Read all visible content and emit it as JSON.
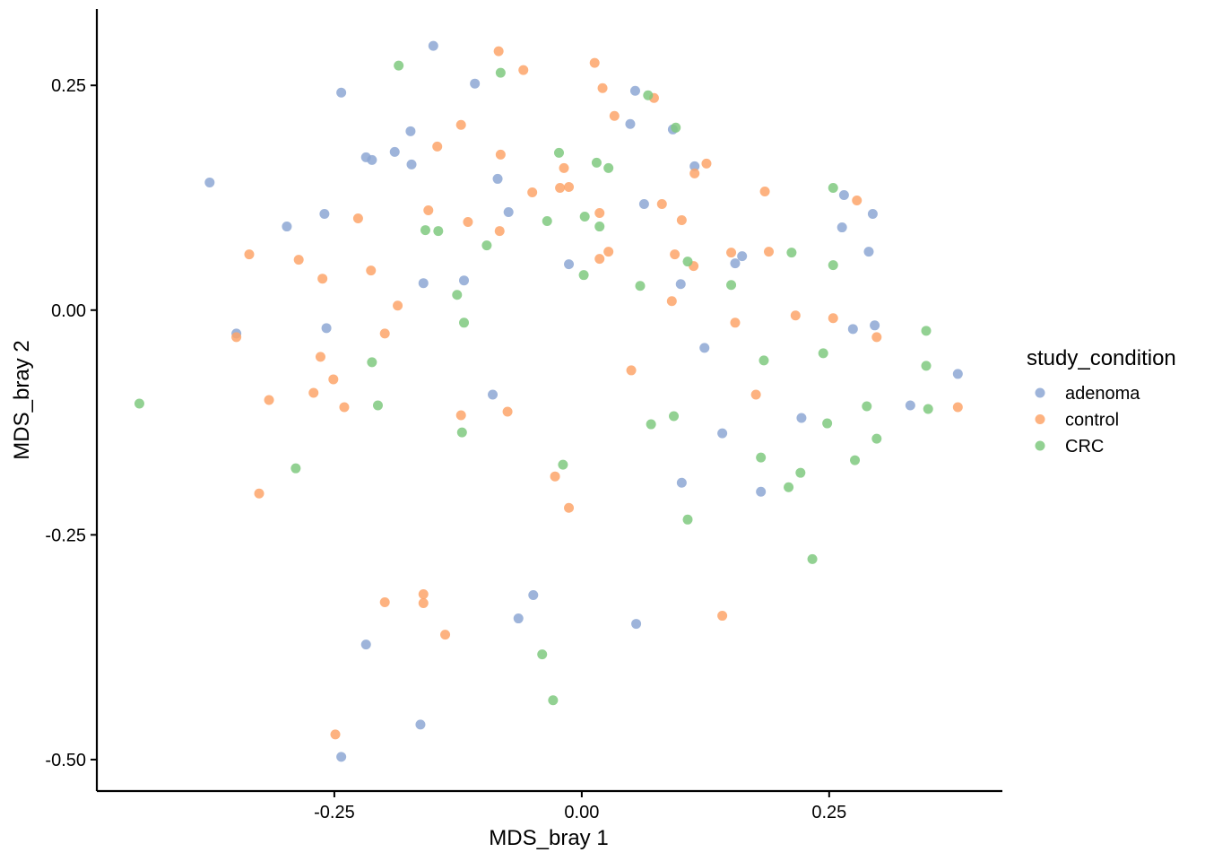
{
  "chart_data": {
    "type": "scatter",
    "xlabel": "MDS_bray 1",
    "ylabel": "MDS_bray 2",
    "xlim": [
      -0.49,
      0.425
    ],
    "ylim": [
      -0.535,
      0.335
    ],
    "x_ticks": [
      -0.25,
      0.0,
      0.25
    ],
    "x_tick_labels": [
      "-0.25",
      "0.00",
      "0.25"
    ],
    "y_ticks": [
      -0.5,
      -0.25,
      0.0,
      0.25
    ],
    "y_tick_labels": [
      "-0.50",
      "-0.25",
      "0.00",
      "0.25"
    ],
    "grid": false,
    "legend": {
      "title": "study_condition",
      "position": "right"
    },
    "series": [
      {
        "name": "adenoma",
        "color": "#8DA7D3",
        "points": [
          [
            -0.376,
            0.142
          ],
          [
            -0.349,
            -0.026
          ],
          [
            -0.298,
            0.093
          ],
          [
            -0.26,
            0.107
          ],
          [
            -0.258,
            -0.02
          ],
          [
            -0.243,
            0.242
          ],
          [
            -0.218,
            0.17
          ],
          [
            -0.212,
            0.167
          ],
          [
            -0.189,
            0.176
          ],
          [
            -0.173,
            0.199
          ],
          [
            -0.172,
            0.162
          ],
          [
            -0.16,
            0.03
          ],
          [
            -0.15,
            0.294
          ],
          [
            -0.119,
            0.033
          ],
          [
            -0.108,
            0.252
          ],
          [
            -0.085,
            0.146
          ],
          [
            -0.074,
            0.109
          ],
          [
            -0.013,
            0.051
          ],
          [
            0.049,
            0.207
          ],
          [
            0.054,
            0.244
          ],
          [
            0.063,
            0.118
          ],
          [
            0.092,
            0.201
          ],
          [
            0.1,
            0.029
          ],
          [
            0.114,
            0.16
          ],
          [
            0.124,
            -0.042
          ],
          [
            0.155,
            0.052
          ],
          [
            0.162,
            0.06
          ],
          [
            0.263,
            0.092
          ],
          [
            0.265,
            0.128
          ],
          [
            0.274,
            -0.021
          ],
          [
            0.29,
            0.065
          ],
          [
            0.294,
            0.107
          ],
          [
            0.296,
            -0.017
          ],
          [
            0.332,
            -0.106
          ],
          [
            0.38,
            -0.071
          ],
          [
            -0.09,
            -0.094
          ],
          [
            0.142,
            -0.137
          ],
          [
            0.222,
            -0.12
          ],
          [
            0.101,
            -0.192
          ],
          [
            0.181,
            -0.202
          ],
          [
            -0.218,
            -0.372
          ],
          [
            -0.049,
            -0.317
          ],
          [
            -0.064,
            -0.343
          ],
          [
            0.055,
            -0.349
          ],
          [
            -0.163,
            -0.461
          ],
          [
            -0.243,
            -0.497
          ]
        ]
      },
      {
        "name": "control",
        "color": "#FDA56A",
        "points": [
          [
            -0.336,
            0.062
          ],
          [
            -0.349,
            -0.03
          ],
          [
            -0.286,
            0.056
          ],
          [
            -0.262,
            0.035
          ],
          [
            -0.226,
            0.102
          ],
          [
            -0.213,
            0.044
          ],
          [
            -0.186,
            0.005
          ],
          [
            -0.199,
            -0.026
          ],
          [
            -0.264,
            -0.052
          ],
          [
            -0.251,
            -0.077
          ],
          [
            -0.271,
            -0.092
          ],
          [
            -0.316,
            -0.1
          ],
          [
            -0.24,
            -0.108
          ],
          [
            -0.326,
            -0.204
          ],
          [
            -0.155,
            0.111
          ],
          [
            -0.146,
            0.182
          ],
          [
            -0.122,
            0.206
          ],
          [
            -0.115,
            0.098
          ],
          [
            -0.083,
            0.088
          ],
          [
            -0.082,
            0.173
          ],
          [
            -0.059,
            0.267
          ],
          [
            -0.084,
            0.288
          ],
          [
            -0.05,
            0.131
          ],
          [
            -0.022,
            0.136
          ],
          [
            -0.018,
            0.158
          ],
          [
            -0.013,
            0.137
          ],
          [
            0.013,
            0.275
          ],
          [
            0.018,
            0.108
          ],
          [
            0.018,
            0.057
          ],
          [
            0.021,
            0.247
          ],
          [
            0.027,
            0.065
          ],
          [
            0.033,
            0.216
          ],
          [
            0.073,
            0.236
          ],
          [
            0.081,
            0.118
          ],
          [
            0.094,
            0.062
          ],
          [
            0.101,
            0.1
          ],
          [
            0.113,
            0.049
          ],
          [
            0.114,
            0.152
          ],
          [
            0.126,
            0.163
          ],
          [
            0.151,
            0.064
          ],
          [
            0.155,
            -0.014
          ],
          [
            0.185,
            0.132
          ],
          [
            0.189,
            0.065
          ],
          [
            0.216,
            -0.006
          ],
          [
            0.254,
            -0.009
          ],
          [
            0.278,
            0.122
          ],
          [
            0.298,
            -0.03
          ],
          [
            0.38,
            -0.108
          ],
          [
            0.091,
            0.01
          ],
          [
            0.05,
            -0.067
          ],
          [
            0.176,
            -0.094
          ],
          [
            -0.122,
            -0.117
          ],
          [
            -0.075,
            -0.113
          ],
          [
            -0.027,
            -0.185
          ],
          [
            -0.013,
            -0.22
          ],
          [
            -0.199,
            -0.325
          ],
          [
            -0.16,
            -0.316
          ],
          [
            -0.16,
            -0.326
          ],
          [
            -0.138,
            -0.361
          ],
          [
            0.142,
            -0.34
          ],
          [
            -0.249,
            -0.472
          ]
        ]
      },
      {
        "name": "CRC",
        "color": "#7FC97F",
        "points": [
          [
            -0.447,
            -0.104
          ],
          [
            -0.289,
            -0.176
          ],
          [
            -0.212,
            -0.058
          ],
          [
            -0.206,
            -0.106
          ],
          [
            -0.185,
            0.272
          ],
          [
            -0.158,
            0.089
          ],
          [
            -0.145,
            0.088
          ],
          [
            -0.126,
            0.017
          ],
          [
            -0.119,
            -0.014
          ],
          [
            -0.121,
            -0.136
          ],
          [
            -0.096,
            0.072
          ],
          [
            -0.082,
            0.264
          ],
          [
            -0.035,
            0.099
          ],
          [
            -0.023,
            0.175
          ],
          [
            0.003,
            0.104
          ],
          [
            0.002,
            0.039
          ],
          [
            0.015,
            0.164
          ],
          [
            0.018,
            0.093
          ],
          [
            0.027,
            0.158
          ],
          [
            0.059,
            0.027
          ],
          [
            0.067,
            0.239
          ],
          [
            0.07,
            -0.127
          ],
          [
            0.093,
            -0.118
          ],
          [
            0.095,
            0.203
          ],
          [
            0.107,
            0.054
          ],
          [
            0.107,
            -0.233
          ],
          [
            0.151,
            0.028
          ],
          [
            0.181,
            -0.164
          ],
          [
            0.184,
            -0.056
          ],
          [
            0.209,
            -0.197
          ],
          [
            0.212,
            0.064
          ],
          [
            0.221,
            -0.181
          ],
          [
            0.233,
            -0.277
          ],
          [
            0.244,
            -0.048
          ],
          [
            0.248,
            -0.126
          ],
          [
            0.254,
            0.136
          ],
          [
            0.254,
            0.05
          ],
          [
            0.276,
            -0.167
          ],
          [
            0.288,
            -0.107
          ],
          [
            0.298,
            -0.143
          ],
          [
            0.348,
            -0.023
          ],
          [
            0.348,
            -0.062
          ],
          [
            0.35,
            -0.11
          ],
          [
            -0.04,
            -0.383
          ],
          [
            -0.029,
            -0.434
          ],
          [
            -0.019,
            -0.172
          ]
        ]
      }
    ]
  }
}
